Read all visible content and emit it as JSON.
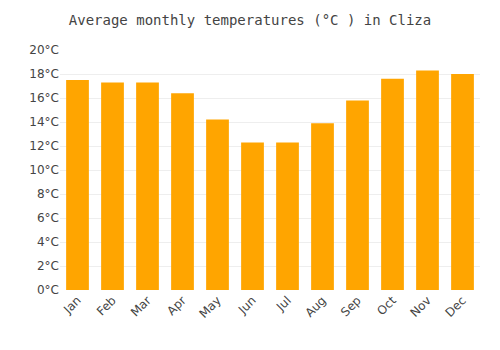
{
  "chart_data": {
    "type": "bar",
    "title": "Average monthly temperatures (°C ) in Cliza",
    "categories": [
      "Jan",
      "Feb",
      "Mar",
      "Apr",
      "May",
      "Jun",
      "Jul",
      "Aug",
      "Sep",
      "Oct",
      "Nov",
      "Dec"
    ],
    "values": [
      17.5,
      17.3,
      17.3,
      16.4,
      14.2,
      12.3,
      12.3,
      13.9,
      15.8,
      17.6,
      18.3,
      18.0
    ],
    "color": "#FFA500",
    "ylim": [
      0,
      20
    ],
    "yticks": [
      {
        "value": 0,
        "label": "0°C"
      },
      {
        "value": 2,
        "label": "2°C"
      },
      {
        "value": 4,
        "label": "4°C"
      },
      {
        "value": 6,
        "label": "6°C"
      },
      {
        "value": 8,
        "label": "8°C"
      },
      {
        "value": 10,
        "label": "10°C"
      },
      {
        "value": 12,
        "label": "12°C"
      },
      {
        "value": 14,
        "label": "14°C"
      },
      {
        "value": 16,
        "label": "16°C"
      },
      {
        "value": 18,
        "label": "18°C"
      },
      {
        "value": 20,
        "label": "20°C"
      }
    ],
    "grid": true
  }
}
